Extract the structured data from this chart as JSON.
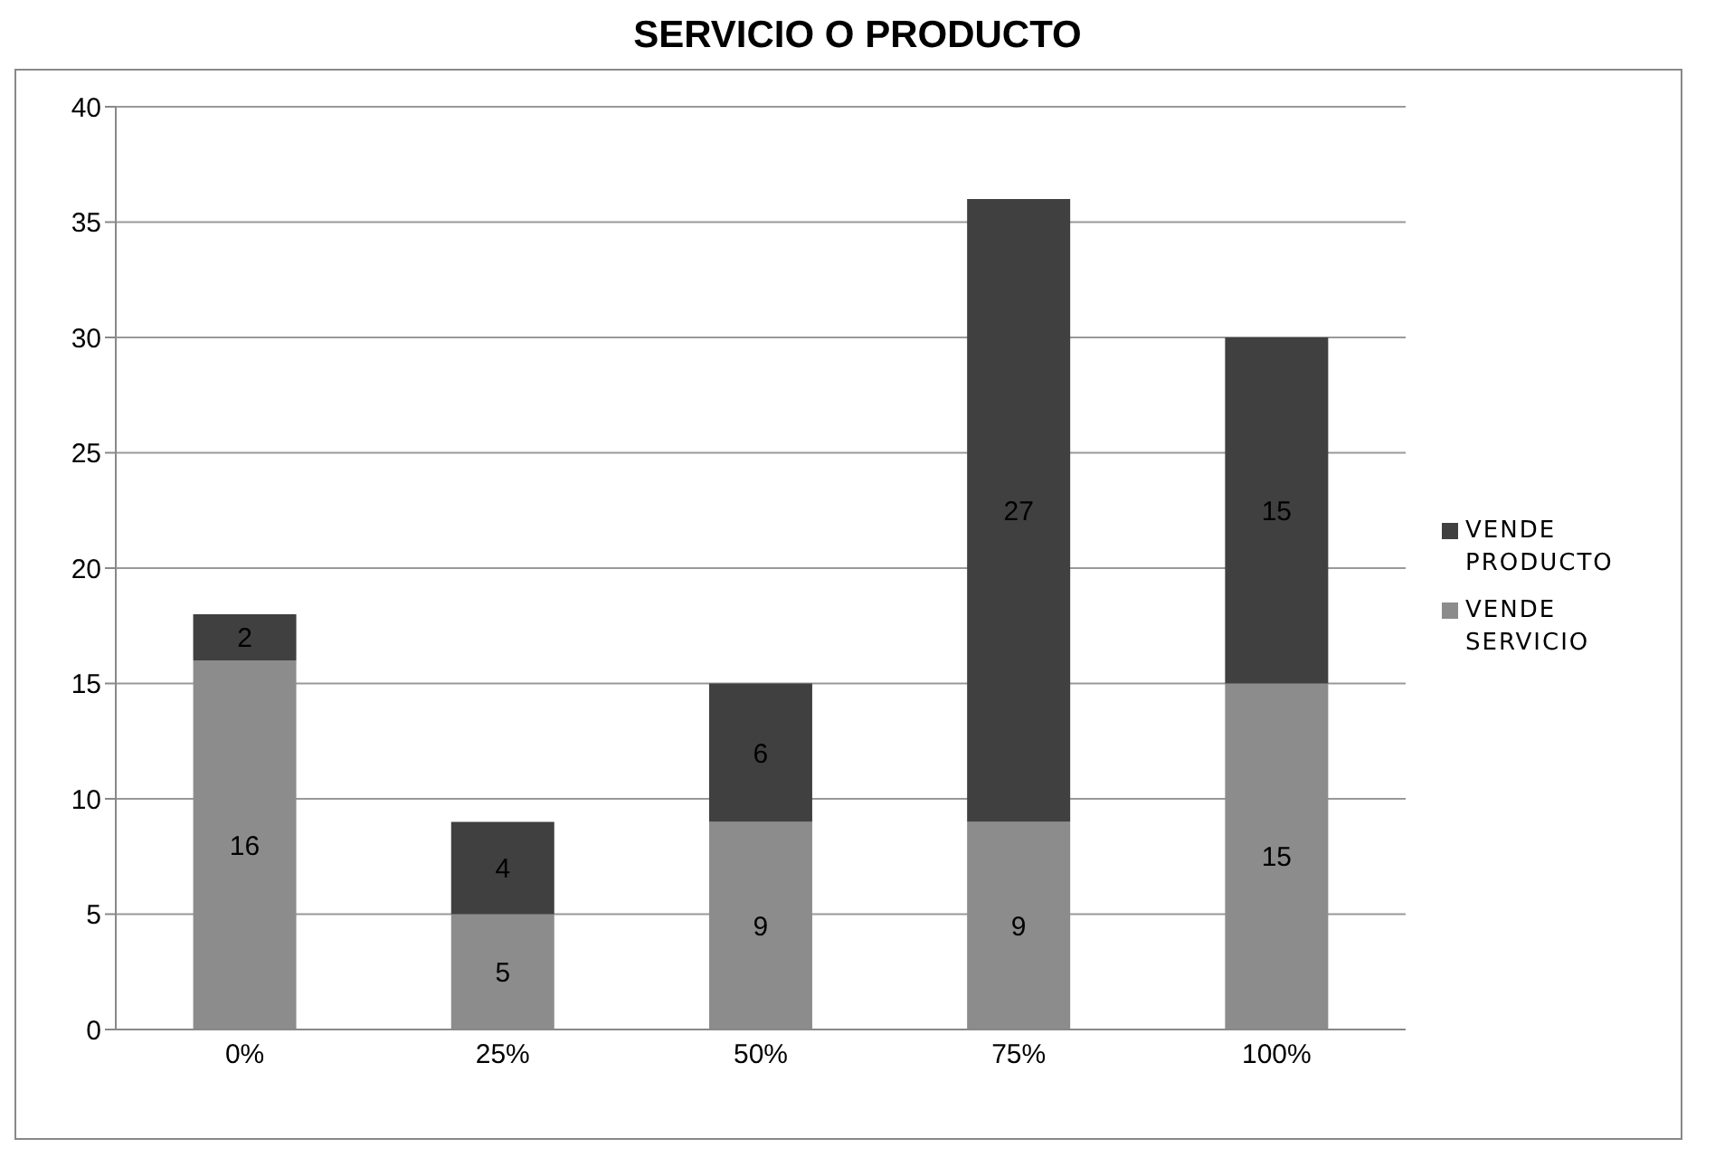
{
  "chart_data": {
    "type": "bar",
    "title": "SERVICIO O PRODUCTO",
    "categories": [
      "0%",
      "25%",
      "50%",
      "75%",
      "100%"
    ],
    "stacked": true,
    "series": [
      {
        "name": "VENDE SERVICIO",
        "color": "#8c8c8c",
        "values": [
          16,
          5,
          9,
          9,
          15
        ]
      },
      {
        "name": "VENDE PRODUCTO",
        "color": "#404040",
        "values": [
          2,
          4,
          6,
          27,
          15
        ]
      }
    ],
    "ylim": [
      0,
      40
    ],
    "yticks": [
      0,
      5,
      10,
      15,
      20,
      25,
      30,
      35,
      40
    ],
    "grid": "y",
    "legend": "right",
    "data_labels": true
  }
}
